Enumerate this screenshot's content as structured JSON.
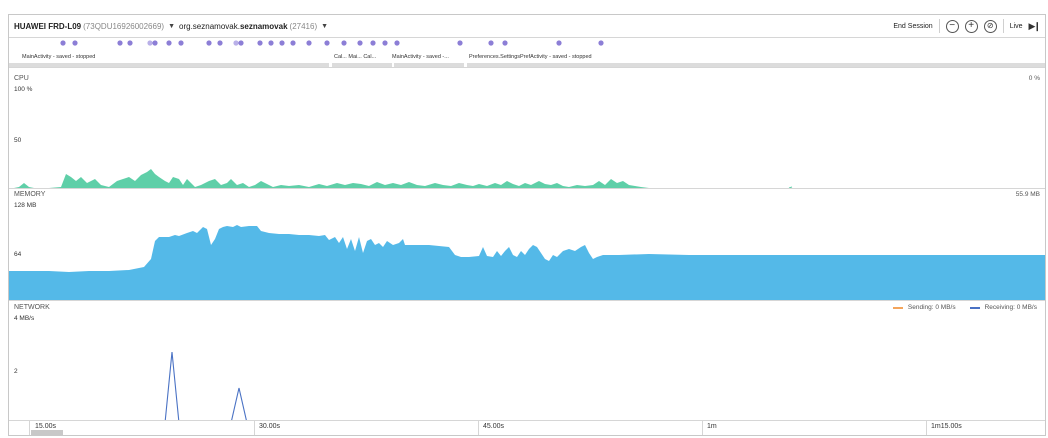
{
  "toolbar": {
    "device_name": "HUAWEI FRD-L09",
    "device_serial": "(73QDU16926002669)",
    "process_prefix": "org.seznamovak.",
    "process_bold": "seznamovak",
    "process_pid": "(27416)",
    "end_session_label": "End Session",
    "zoom_out_glyph": "−",
    "zoom_in_glyph": "+",
    "reset_zoom_glyph": "⊘",
    "live_label": "Live",
    "live_glyph": "▶❙"
  },
  "activities": [
    {
      "label": "MainActivity - saved - stopped"
    },
    {
      "label": "Cal... Mai... Cal..."
    },
    {
      "label": "MainActivity - saved -..."
    },
    {
      "label": "Preferences.SettingsPrefActivity - saved - stopped"
    }
  ],
  "cpu": {
    "title": "CPU",
    "max_label": "100 %",
    "mid_label": "50",
    "current": "0 %",
    "color": "#5fcfa8"
  },
  "memory": {
    "title": "MEMORY",
    "max_label": "128 MB",
    "mid_label": "64",
    "current": "55.9 MB",
    "color": "#54b9e8"
  },
  "network": {
    "title": "NETWORK",
    "max_label": "4 MB/s",
    "mid_label": "2",
    "sending_label": "Sending: 0 MB/s",
    "receiving_label": "Receiving: 0 MB/s",
    "sending_color": "#f4a55c",
    "receiving_color": "#4a72c4"
  },
  "axis": {
    "ticks": [
      "15.00s",
      "30.00s",
      "45.00s",
      "1m",
      "1m15.00s"
    ]
  }
}
